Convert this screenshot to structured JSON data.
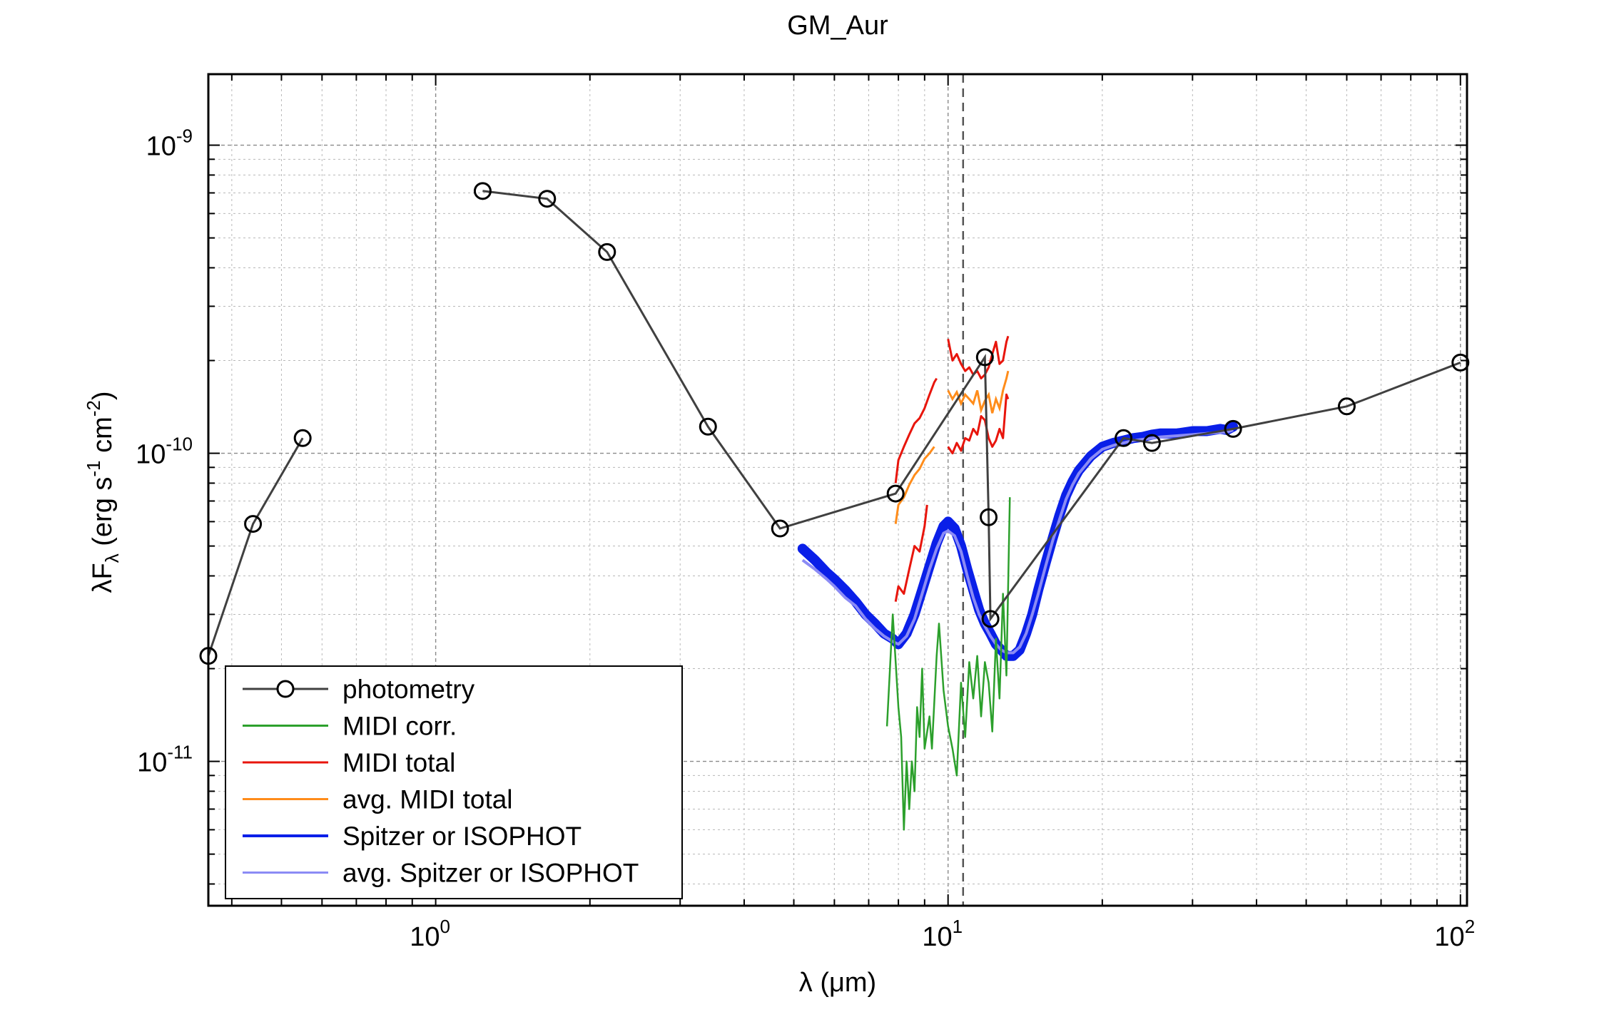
{
  "chart_data": {
    "type": "line",
    "title": "GM_Aur",
    "xlabel": "λ (μm)",
    "ylabel": "λF_λ (erg s^-1 cm^-2)",
    "xscale": "log",
    "yscale": "log",
    "xlim": [
      0.36,
      103
    ],
    "ylim": [
      3.4e-12,
      1.7e-09
    ],
    "grid": true,
    "legend_position": "bottom-left",
    "x_ticks": [
      {
        "value": 1,
        "mantissa": "10",
        "exponent": "0"
      },
      {
        "value": 10,
        "mantissa": "10",
        "exponent": "1"
      },
      {
        "value": 100,
        "mantissa": "10",
        "exponent": "2"
      }
    ],
    "y_ticks": [
      {
        "value": 1e-11,
        "mantissa": "10",
        "exponent": "-11"
      },
      {
        "value": 1e-10,
        "mantissa": "10",
        "exponent": "-10"
      },
      {
        "value": 1e-09,
        "mantissa": "10",
        "exponent": "-9"
      }
    ],
    "annotations": [
      {
        "type": "vline",
        "x": 10.7,
        "style": "dashed",
        "color": "#555555"
      }
    ],
    "series": [
      {
        "name": "photometry",
        "color": "#404040",
        "marker": "circle",
        "segments": [
          [
            [
              0.36,
              2.2e-11
            ],
            [
              0.44,
              5.9e-11
            ],
            [
              0.55,
              1.12e-10
            ]
          ],
          [
            [
              1.235,
              7.1e-10
            ],
            [
              1.65,
              6.7e-10
            ],
            [
              2.16,
              4.5e-10
            ],
            [
              3.4,
              1.22e-10
            ],
            [
              4.7,
              5.7e-11
            ],
            [
              7.9,
              7.4e-11
            ],
            [
              11.8,
              2.05e-10
            ],
            [
              12.0,
              6.2e-11
            ],
            [
              12.1,
              2.9e-11
            ],
            [
              22.0,
              1.12e-10
            ],
            [
              25.0,
              1.08e-10
            ],
            [
              36.0,
              1.2e-10
            ],
            [
              60.0,
              1.42e-10
            ],
            [
              100.0,
              1.97e-10
            ]
          ]
        ]
      },
      {
        "name": "MIDI corr.",
        "color": "#2ca02c",
        "x": [
          7.6,
          7.8,
          8.0,
          8.1,
          8.2,
          8.3,
          8.4,
          8.5,
          8.6,
          8.7,
          8.8,
          8.9,
          9.0,
          9.2,
          9.3,
          9.5,
          9.6,
          9.8,
          10.0,
          10.2,
          10.4,
          10.6,
          10.8,
          11.0,
          11.2,
          11.4,
          11.6,
          11.8,
          12.0,
          12.2,
          12.4,
          12.6,
          12.8,
          13.0,
          13.2
        ],
        "values": [
          1.3e-11,
          3e-11,
          1.5e-11,
          1.2e-11,
          6e-12,
          1e-11,
          7e-12,
          1e-11,
          8e-12,
          1.5e-11,
          1.2e-11,
          2e-11,
          1.1e-11,
          1.4e-11,
          1.1e-11,
          2.2e-11,
          2.8e-11,
          1.7e-11,
          1.3e-11,
          1.1e-11,
          9e-12,
          1.8e-11,
          1.2e-11,
          2.1e-11,
          1.6e-11,
          2.2e-11,
          1.4e-11,
          2.1e-11,
          1.8e-11,
          1.25e-11,
          2.5e-11,
          1.6e-11,
          3.5e-11,
          1.9e-11,
          7.2e-11
        ]
      },
      {
        "name": "MIDI total",
        "color": "#e8150c",
        "segments": [
          {
            "x": [
              7.9,
              8.0,
              8.2,
              8.4,
              8.6,
              8.8,
              9.0,
              9.1
            ],
            "values": [
              3.3e-11,
              3.7e-11,
              3.5e-11,
              4.2e-11,
              5e-11,
              4.8e-11,
              5.8e-11,
              6.8e-11
            ]
          },
          {
            "x": [
              7.9,
              8.0,
              8.2,
              8.4,
              8.6,
              8.8,
              9.0,
              9.2,
              9.4,
              9.5
            ],
            "values": [
              8e-11,
              9.5e-11,
              1.05e-10,
              1.15e-10,
              1.25e-10,
              1.3e-10,
              1.4e-10,
              1.55e-10,
              1.7e-10,
              1.75e-10
            ]
          },
          {
            "x": [
              10.0,
              10.2,
              10.4,
              10.6,
              10.8,
              11.0,
              11.2,
              11.4,
              11.6,
              11.8,
              12.0,
              12.2,
              12.4,
              12.6,
              12.8,
              13.0,
              13.1
            ],
            "values": [
              1.05e-10,
              1e-10,
              1.08e-10,
              1.02e-10,
              1.12e-10,
              1.1e-10,
              1.2e-10,
              1.15e-10,
              1.32e-10,
              1.28e-10,
              1.12e-10,
              1.05e-10,
              1.1e-10,
              1.2e-10,
              1.12e-10,
              1.55e-10,
              1.5e-10
            ]
          },
          {
            "x": [
              10.0,
              10.2,
              10.4,
              10.6,
              10.8,
              11.0,
              11.2,
              11.4,
              11.6,
              11.8,
              12.0,
              12.2,
              12.4,
              12.6,
              12.8,
              13.0,
              13.1
            ],
            "values": [
              2.35e-10,
              2e-10,
              2.1e-10,
              1.95e-10,
              1.85e-10,
              1.9e-10,
              1.8e-10,
              1.85e-10,
              1.75e-10,
              1.8e-10,
              1.9e-10,
              2.1e-10,
              2.3e-10,
              1.95e-10,
              2e-10,
              2.3e-10,
              2.4e-10
            ]
          }
        ]
      },
      {
        "name": "avg. MIDI total",
        "color": "#ff8c1a",
        "x": [
          7.9,
          8.0,
          8.2,
          8.4,
          8.6,
          8.8,
          9.0,
          9.2,
          9.4,
          10.0,
          10.2,
          10.4,
          10.6,
          10.8,
          11.0,
          11.2,
          11.4,
          11.6,
          11.8,
          12.0,
          12.2,
          12.4,
          12.6,
          12.8,
          13.0,
          13.1
        ],
        "values": [
          5.9e-11,
          6.8e-11,
          7.2e-11,
          7.9e-11,
          8.5e-11,
          8.9e-11,
          9.6e-11,
          1e-10,
          1.05e-10,
          1.6e-10,
          1.5e-10,
          1.58e-10,
          1.45e-10,
          1.55e-10,
          1.5e-10,
          1.45e-10,
          1.6e-10,
          1.38e-10,
          1.48e-10,
          1.55e-10,
          1.35e-10,
          1.5e-10,
          1.4e-10,
          1.6e-10,
          1.75e-10,
          1.85e-10
        ]
      },
      {
        "name": "Spitzer or ISOPHOT",
        "color": "#0a1fe8",
        "x": [
          5.2,
          5.5,
          5.8,
          6.0,
          6.3,
          6.6,
          6.9,
          7.2,
          7.5,
          7.8,
          8.0,
          8.3,
          8.6,
          8.9,
          9.2,
          9.5,
          9.8,
          10.0,
          10.3,
          10.6,
          10.9,
          11.2,
          11.5,
          11.8,
          12.1,
          12.4,
          12.7,
          13.0,
          13.4,
          13.8,
          14.2,
          14.6,
          15.0,
          15.5,
          16.0,
          16.5,
          17.0,
          17.5,
          18.0,
          19.0,
          20.0,
          21.0,
          22.0,
          23.0,
          24.0,
          25.0,
          26.0,
          28.0,
          30.0,
          32.0,
          34.0,
          35.0,
          36.0
        ],
        "values": [
          4.9e-11,
          4.5e-11,
          4.1e-11,
          3.9e-11,
          3.6e-11,
          3.3e-11,
          3e-11,
          2.8e-11,
          2.6e-11,
          2.5e-11,
          2.4e-11,
          2.6e-11,
          3e-11,
          3.6e-11,
          4.3e-11,
          5.1e-11,
          5.8e-11,
          6e-11,
          5.7e-11,
          5e-11,
          4.2e-11,
          3.6e-11,
          3.1e-11,
          2.8e-11,
          2.6e-11,
          2.4e-11,
          2.3e-11,
          2.2e-11,
          2.2e-11,
          2.3e-11,
          2.6e-11,
          3e-11,
          3.6e-11,
          4.4e-11,
          5.3e-11,
          6.3e-11,
          7.3e-11,
          8.1e-11,
          8.8e-11,
          9.8e-11,
          1.05e-10,
          1.08e-10,
          1.1e-10,
          1.12e-10,
          1.13e-10,
          1.15e-10,
          1.16e-10,
          1.16e-10,
          1.18e-10,
          1.18e-10,
          1.2e-10,
          1.19e-10,
          1.22e-10
        ]
      },
      {
        "name": "avg. Spitzer or ISOPHOT",
        "color": "#8b8bf5",
        "x": [
          5.2,
          5.5,
          5.8,
          6.0,
          6.3,
          6.6,
          6.9,
          7.2,
          7.5,
          7.8,
          8.0,
          8.3,
          8.6,
          8.9,
          9.2,
          9.5,
          9.8,
          10.0,
          10.3,
          10.6,
          10.9,
          11.2,
          11.5,
          11.8,
          12.1,
          12.4,
          12.7,
          13.0,
          13.4,
          13.8,
          14.2,
          14.6,
          15.0,
          15.5,
          16.0,
          16.5,
          17.0,
          17.5,
          18.0,
          19.0,
          20.0,
          21.0,
          22.0,
          23.0,
          24.0,
          25.0,
          26.0,
          28.0,
          30.0,
          32.0,
          34.0,
          35.0,
          36.0
        ],
        "values": [
          4.5e-11,
          4.2e-11,
          3.9e-11,
          3.7e-11,
          3.4e-11,
          3.2e-11,
          2.9e-11,
          2.7e-11,
          2.55e-11,
          2.45e-11,
          2.4e-11,
          2.55e-11,
          2.9e-11,
          3.5e-11,
          4.2e-11,
          4.9e-11,
          5.5e-11,
          5.6e-11,
          5.4e-11,
          4.8e-11,
          4e-11,
          3.4e-11,
          3e-11,
          2.75e-11,
          2.55e-11,
          2.4e-11,
          2.3e-11,
          2.25e-11,
          2.25e-11,
          2.35e-11,
          2.6e-11,
          3e-11,
          3.5e-11,
          4.3e-11,
          5.2e-11,
          6.1e-11,
          7.1e-11,
          7.9e-11,
          8.6e-11,
          9.6e-11,
          1.03e-10,
          1.06e-10,
          1.08e-10,
          1.1e-10,
          1.11e-10,
          1.12e-10,
          1.13e-10,
          1.14e-10,
          1.15e-10,
          1.16e-10,
          1.17e-10,
          1.17e-10,
          1.19e-10
        ]
      }
    ]
  }
}
